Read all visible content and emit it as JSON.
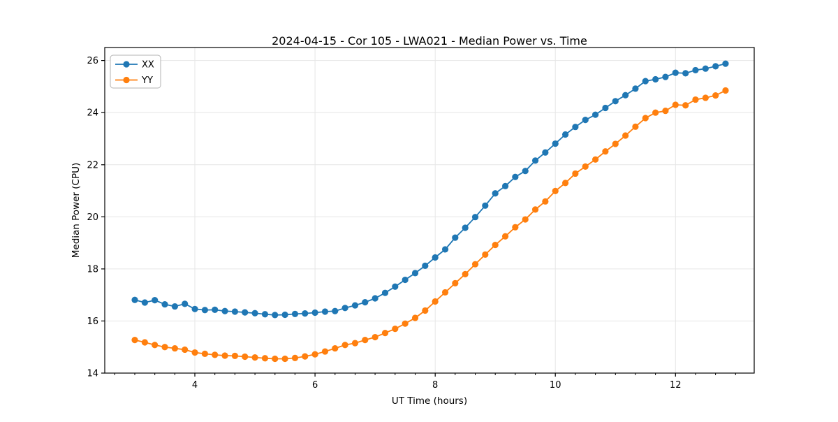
{
  "chart_data": {
    "type": "line",
    "title": "2024-04-15 - Cor 105 - LWA021 - Median Power vs. Time",
    "xlabel": "UT Time (hours)",
    "ylabel": "Median Power (CPU)",
    "xlim": [
      2.5,
      13.31
    ],
    "ylim": [
      14,
      26.5
    ],
    "x_major_ticks": [
      4,
      6,
      8,
      10,
      12
    ],
    "x_tick_labels": [
      "4",
      "6",
      "8",
      "10",
      "12"
    ],
    "x_minor_step": 0.33333,
    "y_major_ticks": [
      14,
      16,
      18,
      20,
      22,
      24,
      26
    ],
    "y_tick_labels": [
      "14",
      "16",
      "18",
      "20",
      "22",
      "24",
      "26"
    ],
    "grid": true,
    "grid_color": "#e6e6e6",
    "spine_color": "#000000",
    "legend_position": "upper left",
    "marker": "circle",
    "x": [
      3.0,
      3.167,
      3.333,
      3.5,
      3.667,
      3.833,
      4.0,
      4.167,
      4.333,
      4.5,
      4.667,
      4.833,
      5.0,
      5.167,
      5.333,
      5.5,
      5.667,
      5.833,
      6.0,
      6.167,
      6.333,
      6.5,
      6.667,
      6.833,
      7.0,
      7.167,
      7.333,
      7.5,
      7.667,
      7.833,
      8.0,
      8.167,
      8.333,
      8.5,
      8.667,
      8.833,
      9.0,
      9.167,
      9.333,
      9.5,
      9.667,
      9.833,
      10.0,
      10.167,
      10.333,
      10.5,
      10.667,
      10.833,
      11.0,
      11.167,
      11.333,
      11.5,
      11.667,
      11.833,
      12.0,
      12.167,
      12.333,
      12.5,
      12.667,
      12.833
    ],
    "series": [
      {
        "name": "XX",
        "color": "#1f77b4",
        "values": [
          16.81,
          16.71,
          16.8,
          16.64,
          16.56,
          16.66,
          16.46,
          16.42,
          16.43,
          16.38,
          16.36,
          16.33,
          16.3,
          16.26,
          16.23,
          16.24,
          16.27,
          16.29,
          16.32,
          16.36,
          16.38,
          16.5,
          16.6,
          16.72,
          16.87,
          17.08,
          17.32,
          17.58,
          17.84,
          18.12,
          18.44,
          18.75,
          19.2,
          19.58,
          19.99,
          20.43,
          20.9,
          21.18,
          21.53,
          21.76,
          22.16,
          22.47,
          22.81,
          23.16,
          23.45,
          23.72,
          23.92,
          24.18,
          24.44,
          24.67,
          24.92,
          25.21,
          25.28,
          25.37,
          25.53,
          25.51,
          25.63,
          25.69,
          25.78,
          25.88
        ]
      },
      {
        "name": "YY",
        "color": "#ff7f0e",
        "values": [
          15.27,
          15.18,
          15.08,
          15.0,
          14.95,
          14.9,
          14.79,
          14.74,
          14.7,
          14.67,
          14.66,
          14.63,
          14.6,
          14.57,
          14.55,
          14.55,
          14.58,
          14.64,
          14.72,
          14.83,
          14.95,
          15.08,
          15.15,
          15.27,
          15.38,
          15.54,
          15.7,
          15.9,
          16.12,
          16.4,
          16.75,
          17.1,
          17.45,
          17.8,
          18.18,
          18.55,
          18.92,
          19.25,
          19.6,
          19.9,
          20.28,
          20.59,
          20.99,
          21.3,
          21.66,
          21.93,
          22.2,
          22.51,
          22.8,
          23.12,
          23.46,
          23.79,
          24.0,
          24.07,
          24.3,
          24.28,
          24.5,
          24.57,
          24.66,
          24.85
        ]
      }
    ]
  }
}
